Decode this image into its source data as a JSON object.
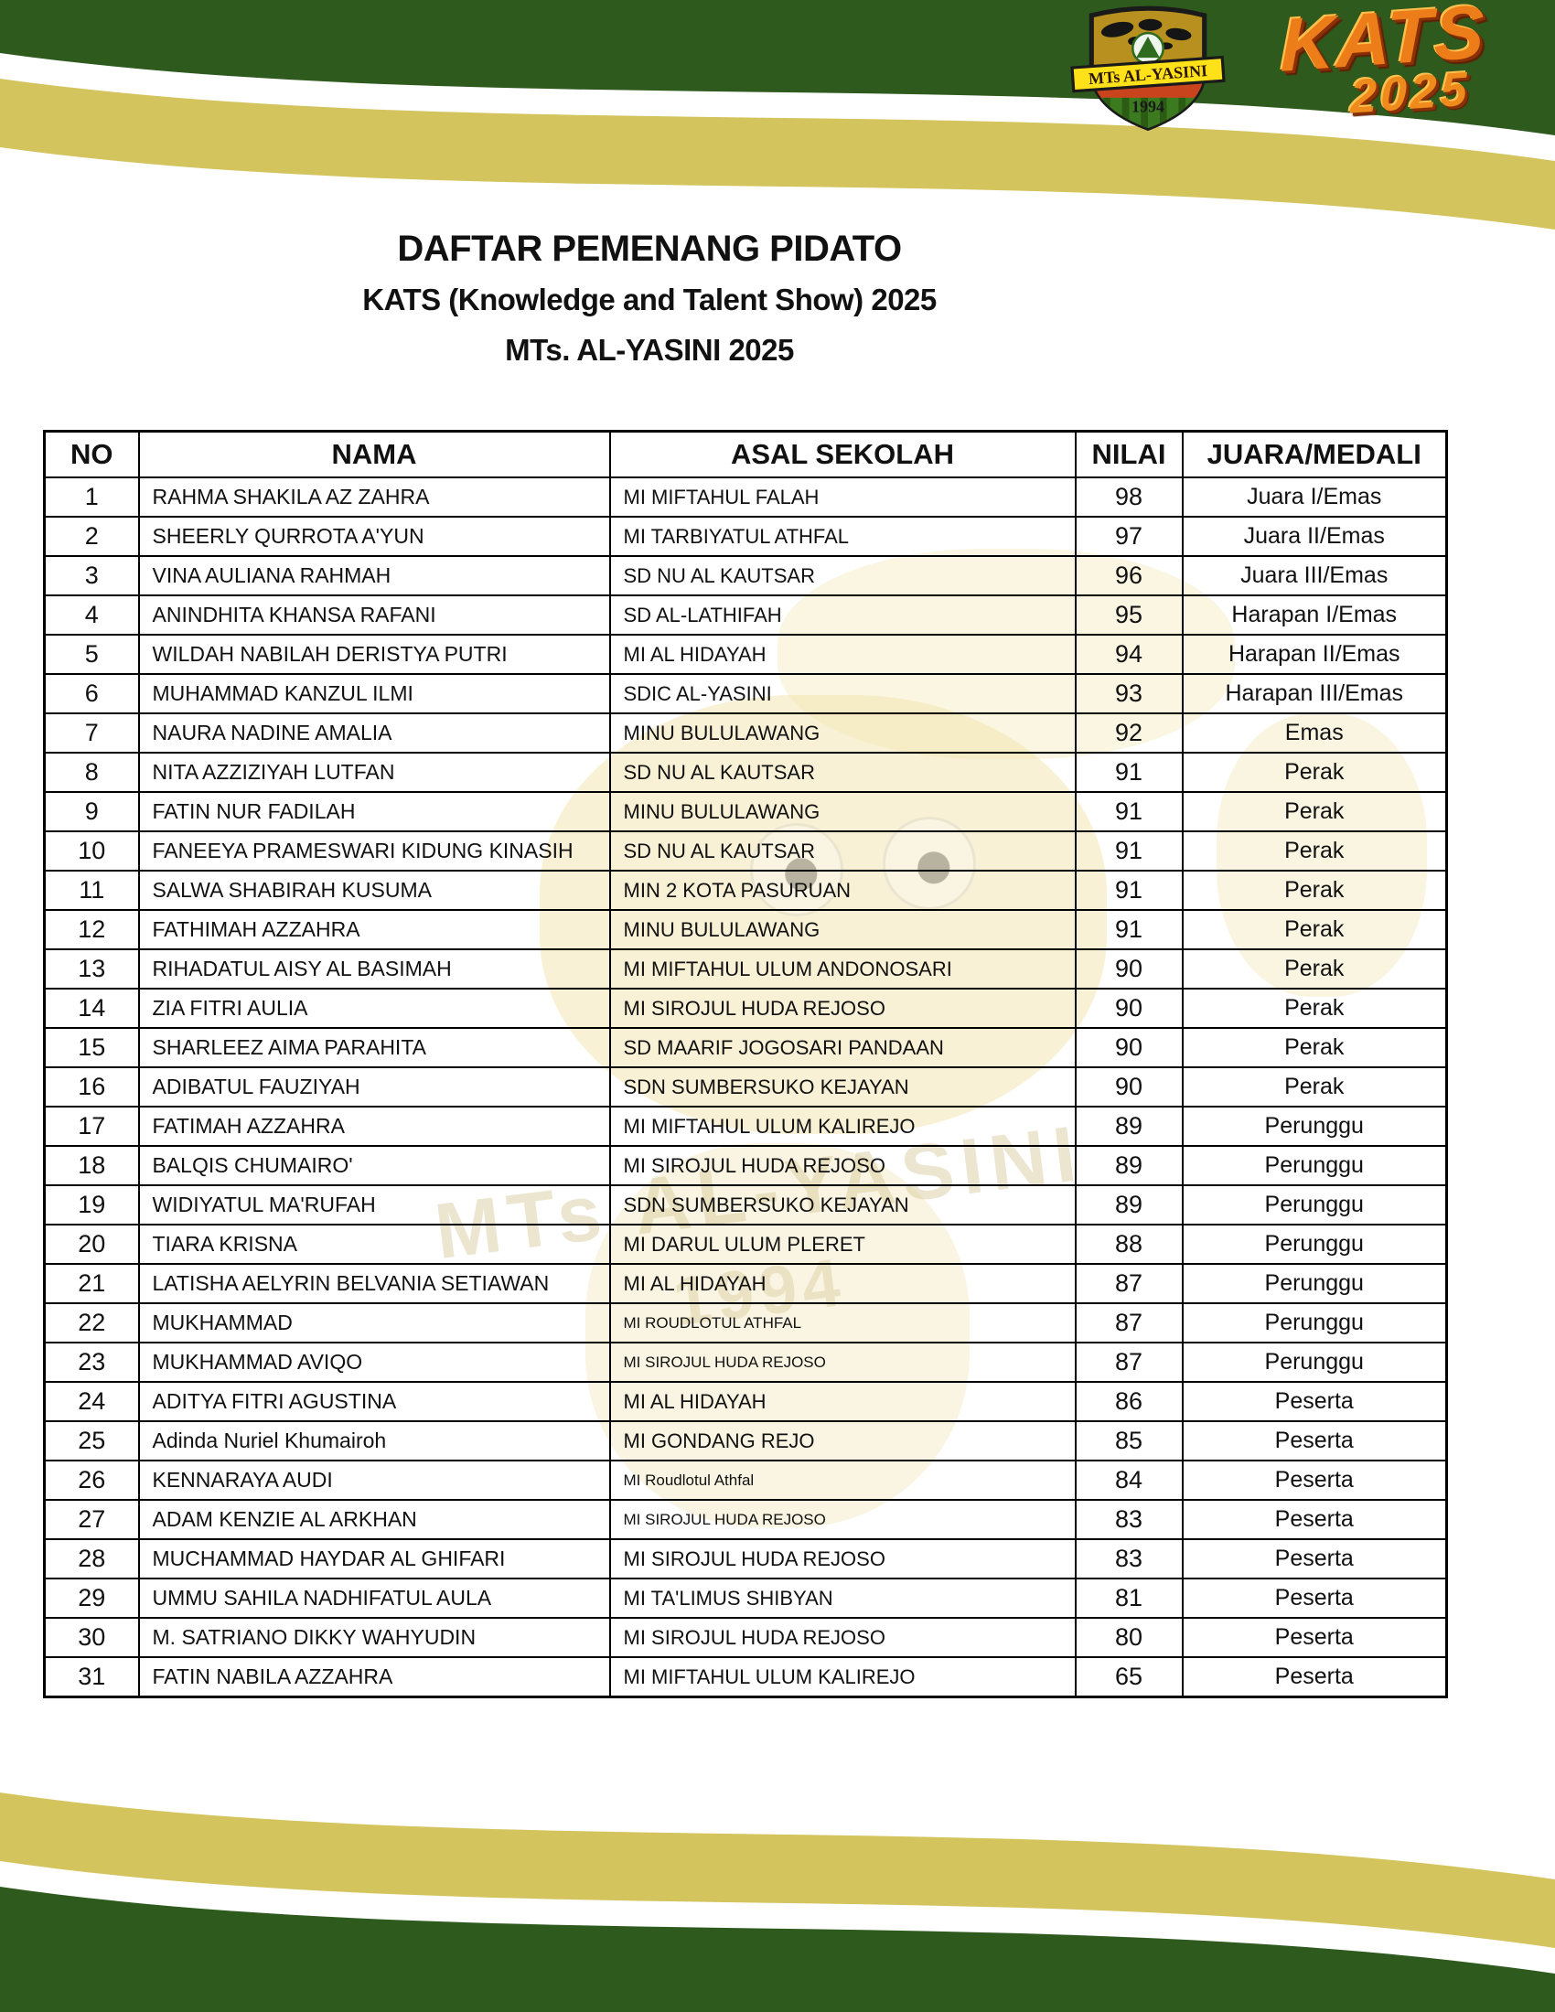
{
  "colors": {
    "dark_green": "#2e5b1d",
    "olive_yellow": "#d4c45e",
    "kats_orange": "#ed7d18",
    "shield_gold": "#b8901f",
    "shield_red": "#c9441c",
    "ribbon_yellow": "#ffe11a"
  },
  "logo": {
    "ribbon_text": "MTs AL-YASINI",
    "year": "1994",
    "kats_line1": "KATS",
    "kats_line2": "2025"
  },
  "title": {
    "line1": "DAFTAR PEMENANG PIDATO",
    "line2": "KATS  (Knowledge and Talent Show) 2025",
    "line3": "MTs. AL-YASINI 2025"
  },
  "watermark": {
    "text1": "MTs AL-YASINI",
    "text2": "1994"
  },
  "table": {
    "headers": [
      "NO",
      "NAMA",
      "ASAL SEKOLAH",
      "NILAI",
      "JUARA/MEDALI"
    ],
    "rows": [
      {
        "no": "1",
        "nama": "RAHMA SHAKILA AZ ZAHRA",
        "sekolah": "MI MIFTAHUL FALAH",
        "nilai": "98",
        "juara": "Juara I/Emas",
        "small_school": false
      },
      {
        "no": "2",
        "nama": "SHEERLY QURROTA A'YUN",
        "sekolah": "MI TARBIYATUL ATHFAL",
        "nilai": "97",
        "juara": "Juara II/Emas",
        "small_school": false
      },
      {
        "no": "3",
        "nama": "VINA AULIANA RAHMAH",
        "sekolah": "SD NU AL KAUTSAR",
        "nilai": "96",
        "juara": "Juara III/Emas",
        "small_school": false
      },
      {
        "no": "4",
        "nama": "ANINDHITA KHANSA RAFANI",
        "sekolah": "SD AL-LATHIFAH",
        "nilai": "95",
        "juara": "Harapan I/Emas",
        "small_school": false
      },
      {
        "no": "5",
        "nama": "WILDAH NABILAH DERISTYA PUTRI",
        "sekolah": "MI AL HIDAYAH",
        "nilai": "94",
        "juara": "Harapan II/Emas",
        "small_school": false
      },
      {
        "no": "6",
        "nama": "MUHAMMAD KANZUL ILMI",
        "sekolah": "SDIC AL-YASINI",
        "nilai": "93",
        "juara": "Harapan III/Emas",
        "small_school": false
      },
      {
        "no": "7",
        "nama": "NAURA NADINE AMALIA",
        "sekolah": "MINU BULULAWANG",
        "nilai": "92",
        "juara": "Emas",
        "small_school": false
      },
      {
        "no": "8",
        "nama": "NITA AZZIZIYAH LUTFAN",
        "sekolah": "SD NU AL KAUTSAR",
        "nilai": "91",
        "juara": "Perak",
        "small_school": false
      },
      {
        "no": "9",
        "nama": "FATIN NUR FADILAH",
        "sekolah": "MINU BULULAWANG",
        "nilai": "91",
        "juara": "Perak",
        "small_school": false
      },
      {
        "no": "10",
        "nama": "FANEEYA PRAMESWARI KIDUNG KINASIH",
        "sekolah": "SD NU AL KAUTSAR",
        "nilai": "91",
        "juara": "Perak",
        "small_school": false
      },
      {
        "no": "11",
        "nama": "SALWA SHABIRAH KUSUMA",
        "sekolah": "MIN 2 KOTA PASURUAN",
        "nilai": "91",
        "juara": "Perak",
        "small_school": false
      },
      {
        "no": "12",
        "nama": "FATHIMAH AZZAHRA",
        "sekolah": "MINU BULULAWANG",
        "nilai": "91",
        "juara": "Perak",
        "small_school": false
      },
      {
        "no": "13",
        "nama": "RIHADATUL AISY AL BASIMAH",
        "sekolah": "MI MIFTAHUL ULUM ANDONOSARI",
        "nilai": "90",
        "juara": "Perak",
        "small_school": false
      },
      {
        "no": "14",
        "nama": "ZIA FITRI AULIA",
        "sekolah": "MI SIROJUL HUDA REJOSO",
        "nilai": "90",
        "juara": "Perak",
        "small_school": false
      },
      {
        "no": "15",
        "nama": "SHARLEEZ AIMA PARAHITA",
        "sekolah": "SD MAARIF JOGOSARI PANDAAN",
        "nilai": "90",
        "juara": "Perak",
        "small_school": false
      },
      {
        "no": "16",
        "nama": "ADIBATUL FAUZIYAH",
        "sekolah": "SDN SUMBERSUKO KEJAYAN",
        "nilai": "90",
        "juara": "Perak",
        "small_school": false
      },
      {
        "no": "17",
        "nama": "FATIMAH AZZAHRA",
        "sekolah": "MI MIFTAHUL ULUM KALIREJO",
        "nilai": "89",
        "juara": "Perunggu",
        "small_school": false
      },
      {
        "no": "18",
        "nama": "BALQIS CHUMAIRO'",
        "sekolah": "MI SIROJUL HUDA REJOSO",
        "nilai": "89",
        "juara": "Perunggu",
        "small_school": false
      },
      {
        "no": "19",
        "nama": "WIDIYATUL MA'RUFAH",
        "sekolah": "SDN SUMBERSUKO KEJAYAN",
        "nilai": "89",
        "juara": "Perunggu",
        "small_school": false
      },
      {
        "no": "20",
        "nama": "TIARA KRISNA",
        "sekolah": "MI DARUL ULUM PLERET",
        "nilai": "88",
        "juara": "Perunggu",
        "small_school": false
      },
      {
        "no": "21",
        "nama": "LATISHA AELYRIN BELVANIA SETIAWAN",
        "sekolah": "MI AL HIDAYAH",
        "nilai": "87",
        "juara": "Perunggu",
        "small_school": false
      },
      {
        "no": "22",
        "nama": "MUKHAMMAD",
        "sekolah": "MI ROUDLOTUL ATHFAL",
        "nilai": "87",
        "juara": "Perunggu",
        "small_school": true
      },
      {
        "no": "23",
        "nama": "MUKHAMMAD AVIQO",
        "sekolah": "MI SIROJUL HUDA REJOSO",
        "nilai": "87",
        "juara": "Perunggu",
        "small_school": true
      },
      {
        "no": "24",
        "nama": "ADITYA FITRI AGUSTINA",
        "sekolah": "MI AL HIDAYAH",
        "nilai": "86",
        "juara": "Peserta",
        "small_school": false
      },
      {
        "no": "25",
        "nama": "Adinda Nuriel Khumairoh",
        "sekolah": "MI GONDANG REJO",
        "nilai": "85",
        "juara": "Peserta",
        "small_school": false
      },
      {
        "no": "26",
        "nama": "KENNARAYA AUDI",
        "sekolah": "MI Roudlotul Athfal",
        "nilai": "84",
        "juara": "Peserta",
        "small_school": true
      },
      {
        "no": "27",
        "nama": "ADAM KENZIE AL ARKHAN",
        "sekolah": "MI SIROJUL HUDA REJOSO",
        "nilai": "83",
        "juara": "Peserta",
        "small_school": true
      },
      {
        "no": "28",
        "nama": "MUCHAMMAD HAYDAR AL GHIFARI",
        "sekolah": "MI SIROJUL HUDA REJOSO",
        "nilai": "83",
        "juara": "Peserta",
        "small_school": false
      },
      {
        "no": "29",
        "nama": "UMMU SAHILA NADHIFATUL AULA",
        "sekolah": "MI TA'LIMUS SHIBYAN",
        "nilai": "81",
        "juara": "Peserta",
        "small_school": false
      },
      {
        "no": "30",
        "nama": "M. SATRIANO DIKKY WAHYUDIN",
        "sekolah": "MI SIROJUL HUDA REJOSO",
        "nilai": "80",
        "juara": "Peserta",
        "small_school": false
      },
      {
        "no": "31",
        "nama": "FATIN NABILA AZZAHRA",
        "sekolah": "MI MIFTAHUL ULUM KALIREJO",
        "nilai": "65",
        "juara": "Peserta",
        "small_school": false
      }
    ]
  }
}
